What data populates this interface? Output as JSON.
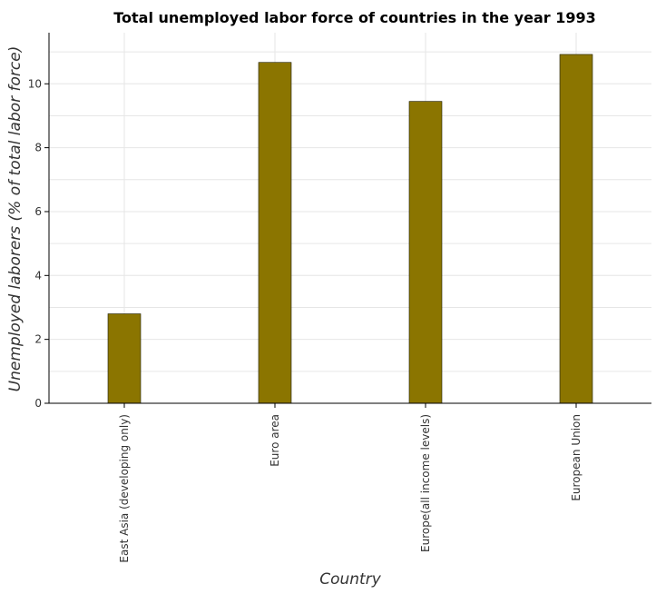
{
  "chart_data": {
    "type": "bar",
    "title": "Total unemployed labor force of countries in the year 1993",
    "xlabel": "Country",
    "ylabel": "Unemployed laborers (% of total labor force)",
    "categories": [
      "East Asia (developing only)",
      "Euro area",
      "Europe(all income levels)",
      "European Union"
    ],
    "values": [
      2.8,
      10.67,
      9.45,
      10.92
    ],
    "ylim": [
      0,
      11.6
    ],
    "yticks": [
      0,
      2,
      4,
      6,
      8,
      10
    ],
    "ytick_labels": [
      "0",
      "2",
      "4",
      "6",
      "8",
      "10"
    ],
    "grid": true,
    "legend": "none",
    "bar_color": "#8b7500",
    "bar_stroke_color": "#1a1a00"
  }
}
